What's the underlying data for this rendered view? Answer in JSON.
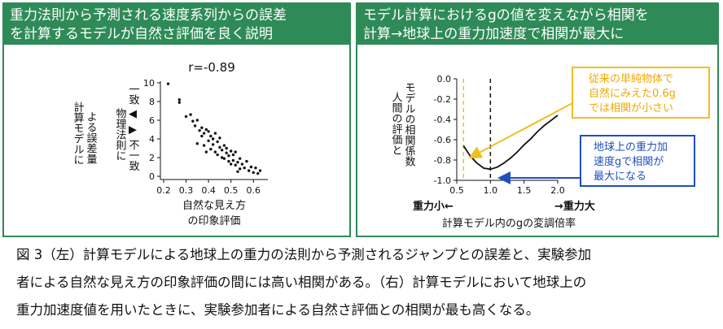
{
  "left_panel": {
    "title_line1": "重力法則から予測される速度系列からの誤差",
    "title_line2": "を計算するモデルが自然さ評価を良く説明",
    "r_label": "r=-0.89",
    "y_label_outer": [
      "計算モデルに",
      "よる誤差量"
    ],
    "y_label_inner": [
      "物理法則に",
      "一致 ◀ ▶ 不一致"
    ],
    "x_label": [
      "自然な見え方",
      "の印象評価"
    ]
  },
  "right_panel": {
    "title_line1": "モデル計算におけるgの値を変えながら相関を",
    "title_line2": "計算→地球上の重力加速度で相関が最大に",
    "y_label": [
      "人間の評価と",
      "モデルの相関係数"
    ],
    "annotation_yellow": [
      "従来の単純物体で",
      "自然にみえた0.6g",
      "では相関が小さい"
    ],
    "annotation_blue": [
      "地球上の重力加",
      "速度gで相関が",
      "最大になる"
    ],
    "x_left_note": "重力小←",
    "x_right_note": "→重力大",
    "x_label": "計算モデル内のgの変調倍率",
    "colors": {
      "yellow": "#f0c020",
      "blue": "#1f4fbf",
      "green": "#2e8b57"
    }
  },
  "caption": {
    "line1": "図 3（左）計算モデルによる地球上の重力の法則から予測されるジャンプとの誤差と、実験参加",
    "line2": "者による自然な見え方の印象評価の間には高い相関がある。（右）計算モデルにおいて地球上の",
    "line3": "重力加速度値を用いたときに、実験参加者による自然さ評価との相関が最も高くなる。"
  },
  "chart_data": [
    {
      "type": "scatter",
      "title": "r=-0.89",
      "xlabel": "自然な見え方の印象評価",
      "ylabel": "計算モデルによる誤差量",
      "xlim": [
        0.2,
        0.65
      ],
      "ylim": [
        0,
        10
      ],
      "x_ticks": [
        "0.2",
        "0.3",
        "0.4",
        "0.5",
        "0.6"
      ],
      "y_ticks": [
        "0",
        "2",
        "4",
        "6",
        "8",
        "10"
      ],
      "points": [
        [
          0.22,
          9.9
        ],
        [
          0.27,
          8.2
        ],
        [
          0.27,
          7.9
        ],
        [
          0.3,
          6.4
        ],
        [
          0.32,
          6.6
        ],
        [
          0.33,
          5.9
        ],
        [
          0.34,
          5.4
        ],
        [
          0.35,
          6.0
        ],
        [
          0.36,
          4.9
        ],
        [
          0.37,
          5.2
        ],
        [
          0.37,
          4.3
        ],
        [
          0.38,
          4.6
        ],
        [
          0.38,
          3.3
        ],
        [
          0.39,
          5.0
        ],
        [
          0.4,
          4.8
        ],
        [
          0.4,
          3.8
        ],
        [
          0.41,
          4.3
        ],
        [
          0.41,
          2.9
        ],
        [
          0.42,
          4.0
        ],
        [
          0.42,
          3.4
        ],
        [
          0.43,
          4.6
        ],
        [
          0.43,
          2.6
        ],
        [
          0.44,
          3.7
        ],
        [
          0.44,
          2.3
        ],
        [
          0.45,
          3.1
        ],
        [
          0.45,
          4.1
        ],
        [
          0.46,
          2.8
        ],
        [
          0.46,
          2.0
        ],
        [
          0.47,
          3.3
        ],
        [
          0.47,
          1.9
        ],
        [
          0.48,
          2.5
        ],
        [
          0.48,
          3.0
        ],
        [
          0.49,
          1.6
        ],
        [
          0.49,
          2.2
        ],
        [
          0.5,
          2.7
        ],
        [
          0.5,
          1.3
        ],
        [
          0.51,
          2.3
        ],
        [
          0.51,
          1.7
        ],
        [
          0.52,
          1.2
        ],
        [
          0.52,
          2.6
        ],
        [
          0.53,
          1.5
        ],
        [
          0.54,
          1.9
        ],
        [
          0.54,
          0.8
        ],
        [
          0.55,
          1.3
        ],
        [
          0.56,
          0.9
        ],
        [
          0.57,
          1.6
        ],
        [
          0.58,
          0.6
        ],
        [
          0.59,
          1.0
        ],
        [
          0.6,
          0.4
        ],
        [
          0.61,
          0.9
        ],
        [
          0.62,
          0.3
        ],
        [
          0.63,
          0.6
        ],
        [
          0.35,
          3.5
        ],
        [
          0.39,
          2.6
        ],
        [
          0.53,
          0.5
        ]
      ]
    },
    {
      "type": "line",
      "xlabel": "計算モデル内のgの変調倍率",
      "ylabel": "人間の評価とモデルの相関係数",
      "xlim": [
        0.5,
        2.0
      ],
      "ylim": [
        -1.0,
        0.0
      ],
      "x_ticks": [
        "0.5",
        "1.0",
        "1.5",
        "2.0"
      ],
      "y_ticks": [
        "0.0",
        "-0.2",
        "-0.4",
        "-0.6",
        "-0.8",
        "-1.0"
      ],
      "x": [
        0.6,
        0.7,
        0.8,
        0.9,
        1.0,
        1.1,
        1.2,
        1.3,
        1.4,
        1.5,
        1.6,
        1.7,
        1.8,
        1.9,
        2.0
      ],
      "y": [
        -0.66,
        -0.76,
        -0.83,
        -0.88,
        -0.89,
        -0.87,
        -0.83,
        -0.78,
        -0.72,
        -0.65,
        -0.59,
        -0.52,
        -0.46,
        -0.41,
        -0.36
      ],
      "vlines": [
        {
          "x": 0.6,
          "color": "yellow",
          "style": "dashed"
        },
        {
          "x": 1.0,
          "color": "black",
          "style": "dashed"
        }
      ]
    }
  ]
}
